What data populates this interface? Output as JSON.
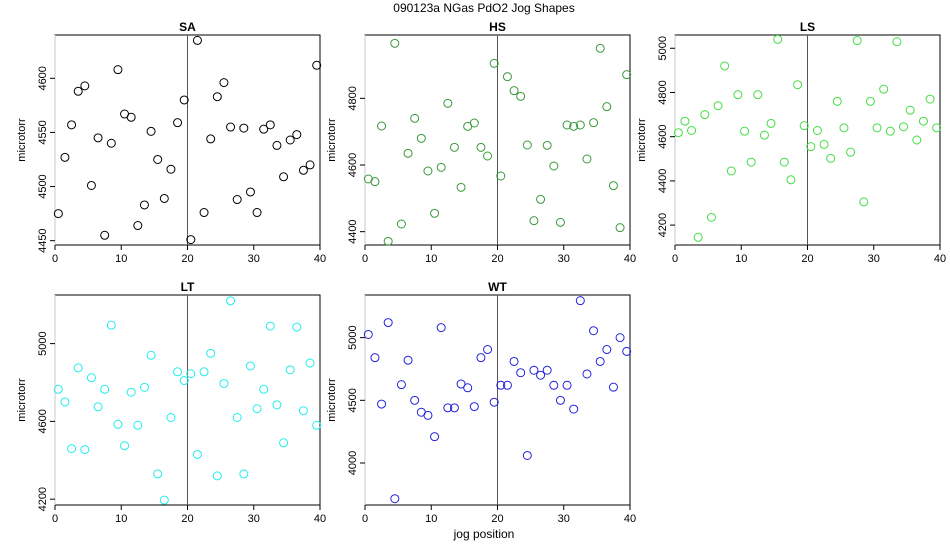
{
  "figure": {
    "title": "090123a   NGas PdO2 Jog Shapes",
    "xlabel": "jog position"
  },
  "chart_data": [
    {
      "type": "scatter",
      "title": "SA",
      "ylabel": "microtorr",
      "color": "#000000",
      "xlim": [
        0,
        40
      ],
      "ylim": [
        4446,
        4640
      ],
      "xticks": [
        0,
        10,
        20,
        30,
        40
      ],
      "yticks": [
        4450,
        4500,
        4550,
        4600
      ],
      "vline": 20,
      "x": [
        0.5,
        1.5,
        2.5,
        3.5,
        4.5,
        5.5,
        6.5,
        7.5,
        8.5,
        9.5,
        10.5,
        11.5,
        12.5,
        13.5,
        14.5,
        15.5,
        16.5,
        17.5,
        18.5,
        19.5,
        20.5,
        21.5,
        22.5,
        23.5,
        24.5,
        25.5,
        26.5,
        27.5,
        28.5,
        29.5,
        30.5,
        31.5,
        32.5,
        33.5,
        34.5,
        35.5,
        36.5,
        37.5,
        38.5,
        39.5
      ],
      "y": [
        4475,
        4527,
        4557,
        4588,
        4593,
        4501,
        4545,
        4455,
        4540,
        4608,
        4567,
        4564,
        4464,
        4483,
        4551,
        4525,
        4489,
        4516,
        4559,
        4580,
        4451,
        4635,
        4476,
        4544,
        4583,
        4596,
        4555,
        4488,
        4554,
        4495,
        4476,
        4553,
        4557,
        4538,
        4509,
        4543,
        4548,
        4515,
        4520,
        4612
      ]
    },
    {
      "type": "scatter",
      "title": "HS",
      "ylabel": "microtorr",
      "color": "#3a9a3a",
      "xlim": [
        0,
        40
      ],
      "ylim": [
        4360,
        4990
      ],
      "xticks": [
        0,
        10,
        20,
        30,
        40
      ],
      "yticks": [
        4400,
        4600,
        4800
      ],
      "vline": 20,
      "x": [
        0.5,
        1.5,
        2.5,
        3.5,
        4.5,
        5.5,
        6.5,
        7.5,
        8.5,
        9.5,
        10.5,
        11.5,
        12.5,
        13.5,
        14.5,
        15.5,
        16.5,
        17.5,
        18.5,
        19.5,
        20.5,
        21.5,
        22.5,
        23.5,
        24.5,
        25.5,
        26.5,
        27.5,
        28.5,
        29.5,
        30.5,
        31.5,
        32.5,
        33.5,
        34.5,
        35.5,
        36.5,
        37.5,
        38.5,
        39.5
      ],
      "y": [
        4558,
        4550,
        4717,
        4371,
        4965,
        4423,
        4635,
        4740,
        4680,
        4582,
        4455,
        4593,
        4785,
        4653,
        4533,
        4716,
        4726,
        4653,
        4627,
        4905,
        4567,
        4865,
        4823,
        4806,
        4660,
        4433,
        4497,
        4659,
        4597,
        4428,
        4720,
        4716,
        4720,
        4618,
        4727,
        4950,
        4775,
        4538,
        4412,
        4871
      ]
    },
    {
      "type": "scatter",
      "title": "LS",
      "ylabel": "microtorr",
      "color": "#44dd44",
      "xlim": [
        0,
        40
      ],
      "ylim": [
        4110,
        5060
      ],
      "xticks": [
        0,
        10,
        20,
        30,
        40
      ],
      "yticks": [
        4200,
        4400,
        4600,
        4800,
        5000
      ],
      "vline": 20,
      "x": [
        0.5,
        1.5,
        2.5,
        3.5,
        4.5,
        5.5,
        6.5,
        7.5,
        8.5,
        9.5,
        10.5,
        11.5,
        12.5,
        13.5,
        14.5,
        15.5,
        16.5,
        17.5,
        18.5,
        19.5,
        20.5,
        21.5,
        22.5,
        23.5,
        24.5,
        25.5,
        26.5,
        27.5,
        28.5,
        29.5,
        30.5,
        31.5,
        32.5,
        33.5,
        34.5,
        35.5,
        36.5,
        37.5,
        38.5,
        39.5
      ],
      "y": [
        4618,
        4670,
        4628,
        4145,
        4700,
        4235,
        4740,
        4920,
        4445,
        4790,
        4625,
        4485,
        4790,
        4607,
        4660,
        5040,
        4485,
        4405,
        4835,
        4650,
        4555,
        4628,
        4565,
        4502,
        4760,
        4640,
        4530,
        5035,
        4305,
        4760,
        4640,
        4815,
        4625,
        5030,
        4645,
        4720,
        4585,
        4670,
        4770,
        4640
      ]
    },
    {
      "type": "scatter",
      "title": "LT",
      "ylabel": "microtorr",
      "color": "#22eeee",
      "xlim": [
        0,
        40
      ],
      "ylim": [
        4170,
        5250
      ],
      "xticks": [
        0,
        10,
        20,
        30,
        40
      ],
      "yticks": [
        4200,
        4600,
        5000
      ],
      "vline": 20,
      "x": [
        0.5,
        1.5,
        2.5,
        3.5,
        4.5,
        5.5,
        6.5,
        7.5,
        8.5,
        9.5,
        10.5,
        11.5,
        12.5,
        13.5,
        14.5,
        15.5,
        16.5,
        17.5,
        18.5,
        19.5,
        20.5,
        21.5,
        22.5,
        23.5,
        24.5,
        25.5,
        26.5,
        27.5,
        28.5,
        29.5,
        30.5,
        31.5,
        32.5,
        33.5,
        34.5,
        35.5,
        36.5,
        37.5,
        38.5,
        39.5
      ],
      "y": [
        4765,
        4700,
        4460,
        4875,
        4455,
        4825,
        4675,
        4765,
        5095,
        4585,
        4475,
        4750,
        4580,
        4775,
        4940,
        4330,
        4195,
        4620,
        4855,
        4810,
        4845,
        4430,
        4855,
        4950,
        4320,
        4795,
        5220,
        4620,
        4330,
        4885,
        4665,
        4765,
        5090,
        4685,
        4490,
        4865,
        5085,
        4655,
        4900,
        4580
      ]
    },
    {
      "type": "scatter",
      "title": "WT",
      "ylabel": "microtorr",
      "color": "#2222dd",
      "xlim": [
        0,
        40
      ],
      "ylim": [
        3665,
        5340
      ],
      "xticks": [
        0,
        10,
        20,
        30,
        40
      ],
      "yticks": [
        4000,
        4500,
        5000
      ],
      "vline": 20,
      "x": [
        0.5,
        1.5,
        2.5,
        3.5,
        4.5,
        5.5,
        6.5,
        7.5,
        8.5,
        9.5,
        10.5,
        11.5,
        12.5,
        13.5,
        14.5,
        15.5,
        16.5,
        17.5,
        18.5,
        19.5,
        20.5,
        21.5,
        22.5,
        23.5,
        24.5,
        25.5,
        26.5,
        27.5,
        28.5,
        29.5,
        30.5,
        31.5,
        32.5,
        33.5,
        34.5,
        35.5,
        36.5,
        37.5,
        38.5,
        39.5
      ],
      "y": [
        5025,
        4840,
        4470,
        5120,
        3715,
        4625,
        4820,
        4500,
        4405,
        4380,
        4210,
        5080,
        4440,
        4440,
        4630,
        4600,
        4450,
        4840,
        4905,
        4485,
        4620,
        4620,
        4810,
        4720,
        4060,
        4740,
        4700,
        4740,
        4620,
        4500,
        4620,
        4430,
        5295,
        4710,
        5055,
        4810,
        4905,
        4605,
        5000,
        4890
      ]
    }
  ]
}
